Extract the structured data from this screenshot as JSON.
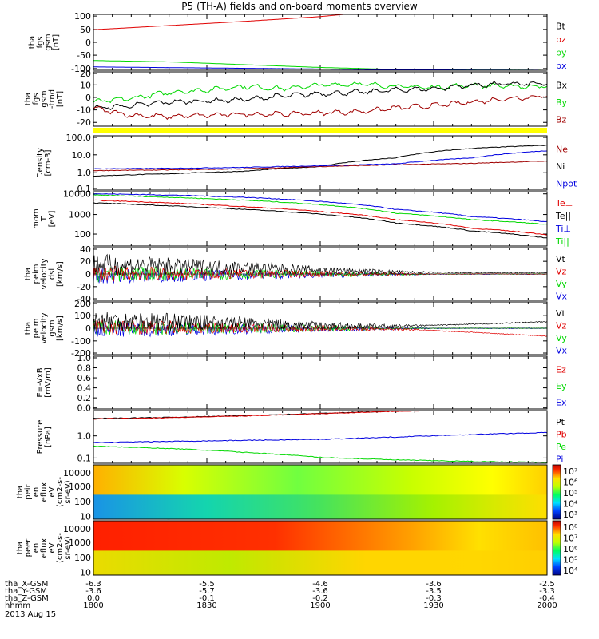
{
  "chart_data": {
    "type": "line",
    "title": "P5 (TH-A) fields and on-board moments overview",
    "colors": {
      "black": "#000000",
      "red": "#e00000",
      "green": "#00d800",
      "blue": "#0000e0",
      "darkred": "#a00000",
      "yellow": "#ffff00"
    },
    "panels": [
      {
        "id": "fgs",
        "ylabel": [
          "tha",
          "fgs",
          "gsm",
          "[nT]"
        ],
        "ylim": [
          -100,
          100
        ],
        "log": false,
        "yticks": [
          "100",
          "50",
          "0",
          "-50",
          "-100"
        ],
        "legend": [
          {
            "text": "Bt",
            "color": "#000000"
          },
          {
            "text": "bz",
            "color": "#e00000"
          },
          {
            "text": "by",
            "color": "#00d800"
          },
          {
            "text": "bx",
            "color": "#0000e0"
          }
        ],
        "series": [
          {
            "name": "bz",
            "color": "#e00000",
            "x": [
              0,
              20,
              40,
              60,
              70,
              80,
              90
            ],
            "y": [
              45,
              60,
              75,
              92,
              105,
              118,
              130
            ]
          },
          {
            "name": "by",
            "color": "#00d800",
            "x": [
              0,
              20,
              40,
              60,
              80,
              100,
              120
            ],
            "y": [
              -65,
              -70,
              -80,
              -90,
              -97,
              -99,
              -100
            ]
          },
          {
            "name": "bx",
            "color": "#0000e0",
            "x": [
              0,
              40,
              80,
              120
            ],
            "y": [
              -88,
              -93,
              -98,
              -100
            ]
          }
        ]
      },
      {
        "id": "fgs-dtrend",
        "ylabel": [
          "tha",
          "fgs",
          "gsm",
          "-trnd",
          "[nT]"
        ],
        "ylim": [
          -25,
          20
        ],
        "log": false,
        "yticks": [
          "20",
          "10",
          "0",
          "-10",
          "-20"
        ],
        "legend": [
          {
            "text": "Bx",
            "color": "#000000"
          },
          {
            "text": "By",
            "color": "#00d800"
          },
          {
            "text": "Bz",
            "color": "#a00000"
          }
        ],
        "series": [
          {
            "name": "By",
            "color": "#00d800",
            "x": [
              0,
              10,
              20,
              30,
              40,
              50,
              60,
              70,
              80,
              90,
              100,
              110,
              120
            ],
            "y": [
              -5,
              -2,
              3,
              5,
              8,
              6,
              9,
              10,
              8,
              7,
              9,
              8,
              8
            ]
          },
          {
            "name": "Bx",
            "color": "#000000",
            "x": [
              0,
              10,
              20,
              30,
              40,
              50,
              60,
              70,
              80,
              90,
              100,
              110,
              120
            ],
            "y": [
              -10,
              -8,
              -5,
              -4,
              -3,
              0,
              2,
              3,
              5,
              6,
              9,
              10,
              10
            ]
          },
          {
            "name": "Bz",
            "color": "#a00000",
            "x": [
              0,
              10,
              20,
              30,
              40,
              50,
              60,
              70,
              80,
              90,
              100,
              110,
              120
            ],
            "y": [
              -10,
              -16,
              -17,
              -16,
              -15,
              -15,
              -14,
              -13,
              -10,
              -8,
              -5,
              -2,
              0
            ]
          }
        ]
      },
      {
        "id": "density",
        "ylabel": [
          "Density",
          "[cm-3]"
        ],
        "ylim": [
          0.1,
          100
        ],
        "log": true,
        "yticks": [
          "100.0",
          "10.0",
          "1.0",
          "0.1"
        ],
        "legend": [
          {
            "text": "Ne",
            "color": "#a00000"
          },
          {
            "text": "Ni",
            "color": "#000000"
          },
          {
            "text": "Npot",
            "color": "#0000e0"
          }
        ],
        "series": [
          {
            "name": "Ni",
            "color": "#000000",
            "x": [
              0,
              20,
              40,
              60,
              80,
              100,
              120
            ],
            "y": [
              0.6,
              0.8,
              1.1,
              2,
              6,
              20,
              30
            ]
          },
          {
            "name": "Ne",
            "color": "#a00000",
            "x": [
              0,
              20,
              40,
              60,
              80,
              100,
              120
            ],
            "y": [
              1.2,
              1.3,
              1.5,
              2,
              2.5,
              3,
              4
            ]
          },
          {
            "name": "Npot",
            "color": "#0000e0",
            "x": [
              0,
              20,
              40,
              60,
              80,
              100,
              120
            ],
            "y": [
              1.5,
              1.6,
              1.8,
              2.2,
              2.8,
              6,
              15
            ]
          }
        ]
      },
      {
        "id": "temperature",
        "ylabel": [
          "mom",
          "T",
          "[eV]"
        ],
        "ylim": [
          30,
          10000
        ],
        "log": true,
        "yticks": [
          "10000",
          "1000",
          "100"
        ],
        "legend": [
          {
            "text": "Te⊥",
            "color": "#e00000"
          },
          {
            "text": "Te||",
            "color": "#000000"
          },
          {
            "text": "Ti⊥",
            "color": "#0000e0"
          },
          {
            "text": "Ti||",
            "color": "#00d800"
          }
        ],
        "series": [
          {
            "name": "Ti⊥",
            "color": "#0000e0",
            "x": [
              0,
              20,
              40,
              60,
              80,
              100,
              120
            ],
            "y": [
              8000,
              7000,
              5500,
              3500,
              1500,
              700,
              400
            ]
          },
          {
            "name": "Ti||",
            "color": "#00d800",
            "x": [
              0,
              20,
              40,
              60,
              80,
              100,
              120
            ],
            "y": [
              7000,
              5500,
              4000,
              2500,
              1000,
              500,
              300
            ]
          },
          {
            "name": "Te⊥",
            "color": "#e00000",
            "x": [
              0,
              20,
              40,
              60,
              80,
              100,
              120
            ],
            "y": [
              4000,
              3000,
              2000,
              1200,
              500,
              200,
              100
            ]
          },
          {
            "name": "Te||",
            "color": "#000000",
            "x": [
              0,
              20,
              40,
              60,
              80,
              100,
              120
            ],
            "y": [
              3000,
              2200,
              1500,
              900,
              350,
              150,
              70
            ]
          }
        ]
      },
      {
        "id": "velocity-dsl",
        "ylabel": [
          "tha",
          "peim",
          "velocity",
          "dsl",
          "[km/s]"
        ],
        "ylim": [
          -40,
          40
        ],
        "log": false,
        "yticks": [
          "40",
          "20",
          "0",
          "-20",
          "-40"
        ],
        "legend": [
          {
            "text": "Vt",
            "color": "#000000"
          },
          {
            "text": "Vz",
            "color": "#e00000"
          },
          {
            "text": "Vy",
            "color": "#00d800"
          },
          {
            "text": "Vx",
            "color": "#0000e0"
          }
        ],
        "series": [
          {
            "name": "Vt",
            "color": "#000000",
            "x": [
              0,
              20,
              40,
              60,
              80,
              100,
              120
            ],
            "y": [
              15,
              12,
              10,
              6,
              3,
              2,
              2
            ]
          }
        ]
      },
      {
        "id": "velocity-gsm",
        "ylabel": [
          "tha",
          "peim",
          "velocity",
          "gsm",
          "[km/s]"
        ],
        "ylim": [
          -200,
          200
        ],
        "log": false,
        "yticks": [
          "200",
          "100",
          "0",
          "-100",
          "-200"
        ],
        "legend": [
          {
            "text": "Vt",
            "color": "#000000"
          },
          {
            "text": "Vz",
            "color": "#e00000"
          },
          {
            "text": "Vy",
            "color": "#00d800"
          },
          {
            "text": "Vx",
            "color": "#0000e0"
          }
        ],
        "series": [
          {
            "name": "Vt",
            "color": "#000000",
            "x": [
              0,
              20,
              40,
              60,
              80,
              100,
              120
            ],
            "y": [
              60,
              50,
              40,
              20,
              15,
              30,
              50
            ]
          },
          {
            "name": "Vz",
            "color": "#e00000",
            "x": [
              0,
              20,
              40,
              60,
              80,
              100,
              120
            ],
            "y": [
              10,
              5,
              0,
              0,
              -5,
              -30,
              -60
            ]
          }
        ]
      },
      {
        "id": "efield",
        "ylabel": [
          "E=-VxB",
          "[mV/m]"
        ],
        "ylim": [
          0,
          1
        ],
        "log": false,
        "yticks": [
          "1.0",
          "0.8",
          "0.6",
          "0.4",
          "0.2",
          "0.0"
        ],
        "legend": [
          {
            "text": "Ez",
            "color": "#e00000"
          },
          {
            "text": "Ey",
            "color": "#00d800"
          },
          {
            "text": "Ex",
            "color": "#0000e0"
          }
        ],
        "series": []
      },
      {
        "id": "pressure",
        "ylabel": [
          "Pressure",
          "[nPa]"
        ],
        "ylim": [
          0.05,
          10
        ],
        "log": true,
        "yticks": [
          "1.0",
          "0.1"
        ],
        "legend": [
          {
            "text": "Pt",
            "color": "#000000"
          },
          {
            "text": "Pb",
            "color": "#e00000"
          },
          {
            "text": "Pe",
            "color": "#00d800"
          },
          {
            "text": "Pi",
            "color": "#0000e0"
          }
        ],
        "series": [
          {
            "name": "Pt",
            "color": "#000000",
            "x": [
              0,
              20,
              40,
              60,
              80,
              100,
              120
            ],
            "y": [
              4.5,
              5,
              6,
              7.5,
              9.5,
              11,
              12
            ]
          },
          {
            "name": "Pb",
            "color": "#e00000",
            "x": [
              0,
              20,
              40,
              60,
              80,
              100,
              120
            ],
            "y": [
              4.3,
              4.9,
              5.8,
              7.3,
              9.3,
              11,
              12
            ]
          },
          {
            "name": "Pi",
            "color": "#0000e0",
            "x": [
              0,
              20,
              40,
              60,
              80,
              100,
              120
            ],
            "y": [
              0.4,
              0.45,
              0.5,
              0.55,
              0.7,
              0.9,
              1.1
            ]
          },
          {
            "name": "Pe",
            "color": "#00d800",
            "x": [
              0,
              20,
              40,
              60,
              80,
              100,
              120
            ],
            "y": [
              0.28,
              0.22,
              0.15,
              0.09,
              0.07,
              0.06,
              0.055
            ]
          }
        ]
      },
      {
        "id": "ion-spec",
        "type": "heatmap",
        "ylabel": [
          "tha",
          "peir",
          "en",
          "eflux",
          "eV",
          "(cm2-s-",
          "sr-eV)"
        ],
        "yticks": [
          "10000",
          "1000",
          "100",
          "10"
        ],
        "colorbar_ticks": [
          "10⁷",
          "10⁶",
          "10⁵",
          "10⁴",
          "10³"
        ]
      },
      {
        "id": "elec-spec",
        "type": "heatmap",
        "ylabel": [
          "tha",
          "peer",
          "en",
          "eflux",
          "eV",
          "(cm2-s-",
          "sr-eV)"
        ],
        "yticks": [
          "10000",
          "1000",
          "100",
          "10"
        ],
        "colorbar_ticks": [
          "10⁸",
          "10⁷",
          "10⁶",
          "10⁵",
          "10⁴"
        ]
      }
    ],
    "xaxis": {
      "label_rows": [
        {
          "label": "tha_X-GSM",
          "values": [
            "-6.3",
            "-5.5",
            "-4.6",
            "-3.6",
            "-2.5"
          ]
        },
        {
          "label": "tha_Y-GSM",
          "values": [
            "-3.6",
            "-5.7",
            "-3.6",
            "-3.5",
            "-3.3"
          ]
        },
        {
          "label": "tha_Z-GSM",
          "values": [
            "0.0",
            "-0.1",
            "-0.2",
            "-0.3",
            "-0.4"
          ]
        },
        {
          "label": "hhmm",
          "values": [
            "1800",
            "1830",
            "1900",
            "1930",
            "2000"
          ]
        }
      ],
      "date": "2013 Aug 15"
    }
  }
}
